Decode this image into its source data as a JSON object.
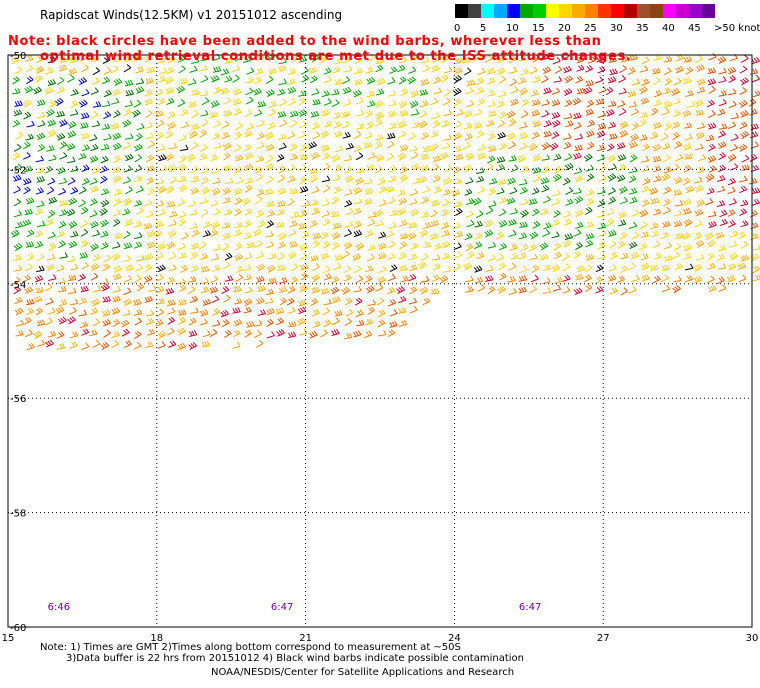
{
  "title": "Rapidscat Winds(12.5KM) v1 20151012 ascending",
  "note": {
    "line1": "Note: black circles have been added to the wind barbs, wherever less than",
    "line2": "optimal wind retrieval conditions are met due to the ISS attitude changes."
  },
  "legend": {
    "colors": [
      "#000000",
      "#404040",
      "#00ffff",
      "#00aaff",
      "#0000ff",
      "#00aa00",
      "#00cc00",
      "#ffff00",
      "#ffd700",
      "#ffaa00",
      "#ff7f00",
      "#ff3300",
      "#ff0000",
      "#b40000",
      "#a0522d",
      "#8b4513",
      "#ff00ff",
      "#cc00cc",
      "#9900cc",
      "#660099"
    ],
    "labels": [
      "0",
      "5",
      "10",
      "15",
      "20",
      "25",
      "30",
      "35",
      "40",
      "45",
      ">50 knots"
    ]
  },
  "map": {
    "x_ticks": [
      "15",
      "18",
      "21",
      "24",
      "27",
      "30"
    ],
    "y_ticks": [
      "-50",
      "-52",
      "-54",
      "-56",
      "-58",
      "-60"
    ],
    "lon_range": [
      15,
      30
    ],
    "lat_range": [
      -60,
      -50
    ],
    "time_labels": [
      {
        "text": "6:46",
        "lon": 15.8
      },
      {
        "text": "6:47",
        "lon": 20.3
      },
      {
        "text": "6:47",
        "lon": 25.3
      }
    ]
  },
  "footer": {
    "line1": "Note: 1) Times are GMT 2)Times along bottom correspond to measurement at ~50S",
    "line2": "3)Data buffer is 22 hrs from 20151012 4) Black wind barbs indicate possible contamination",
    "line3": "NOAA/NESDIS/Center for Satellite Applications and Research"
  }
}
